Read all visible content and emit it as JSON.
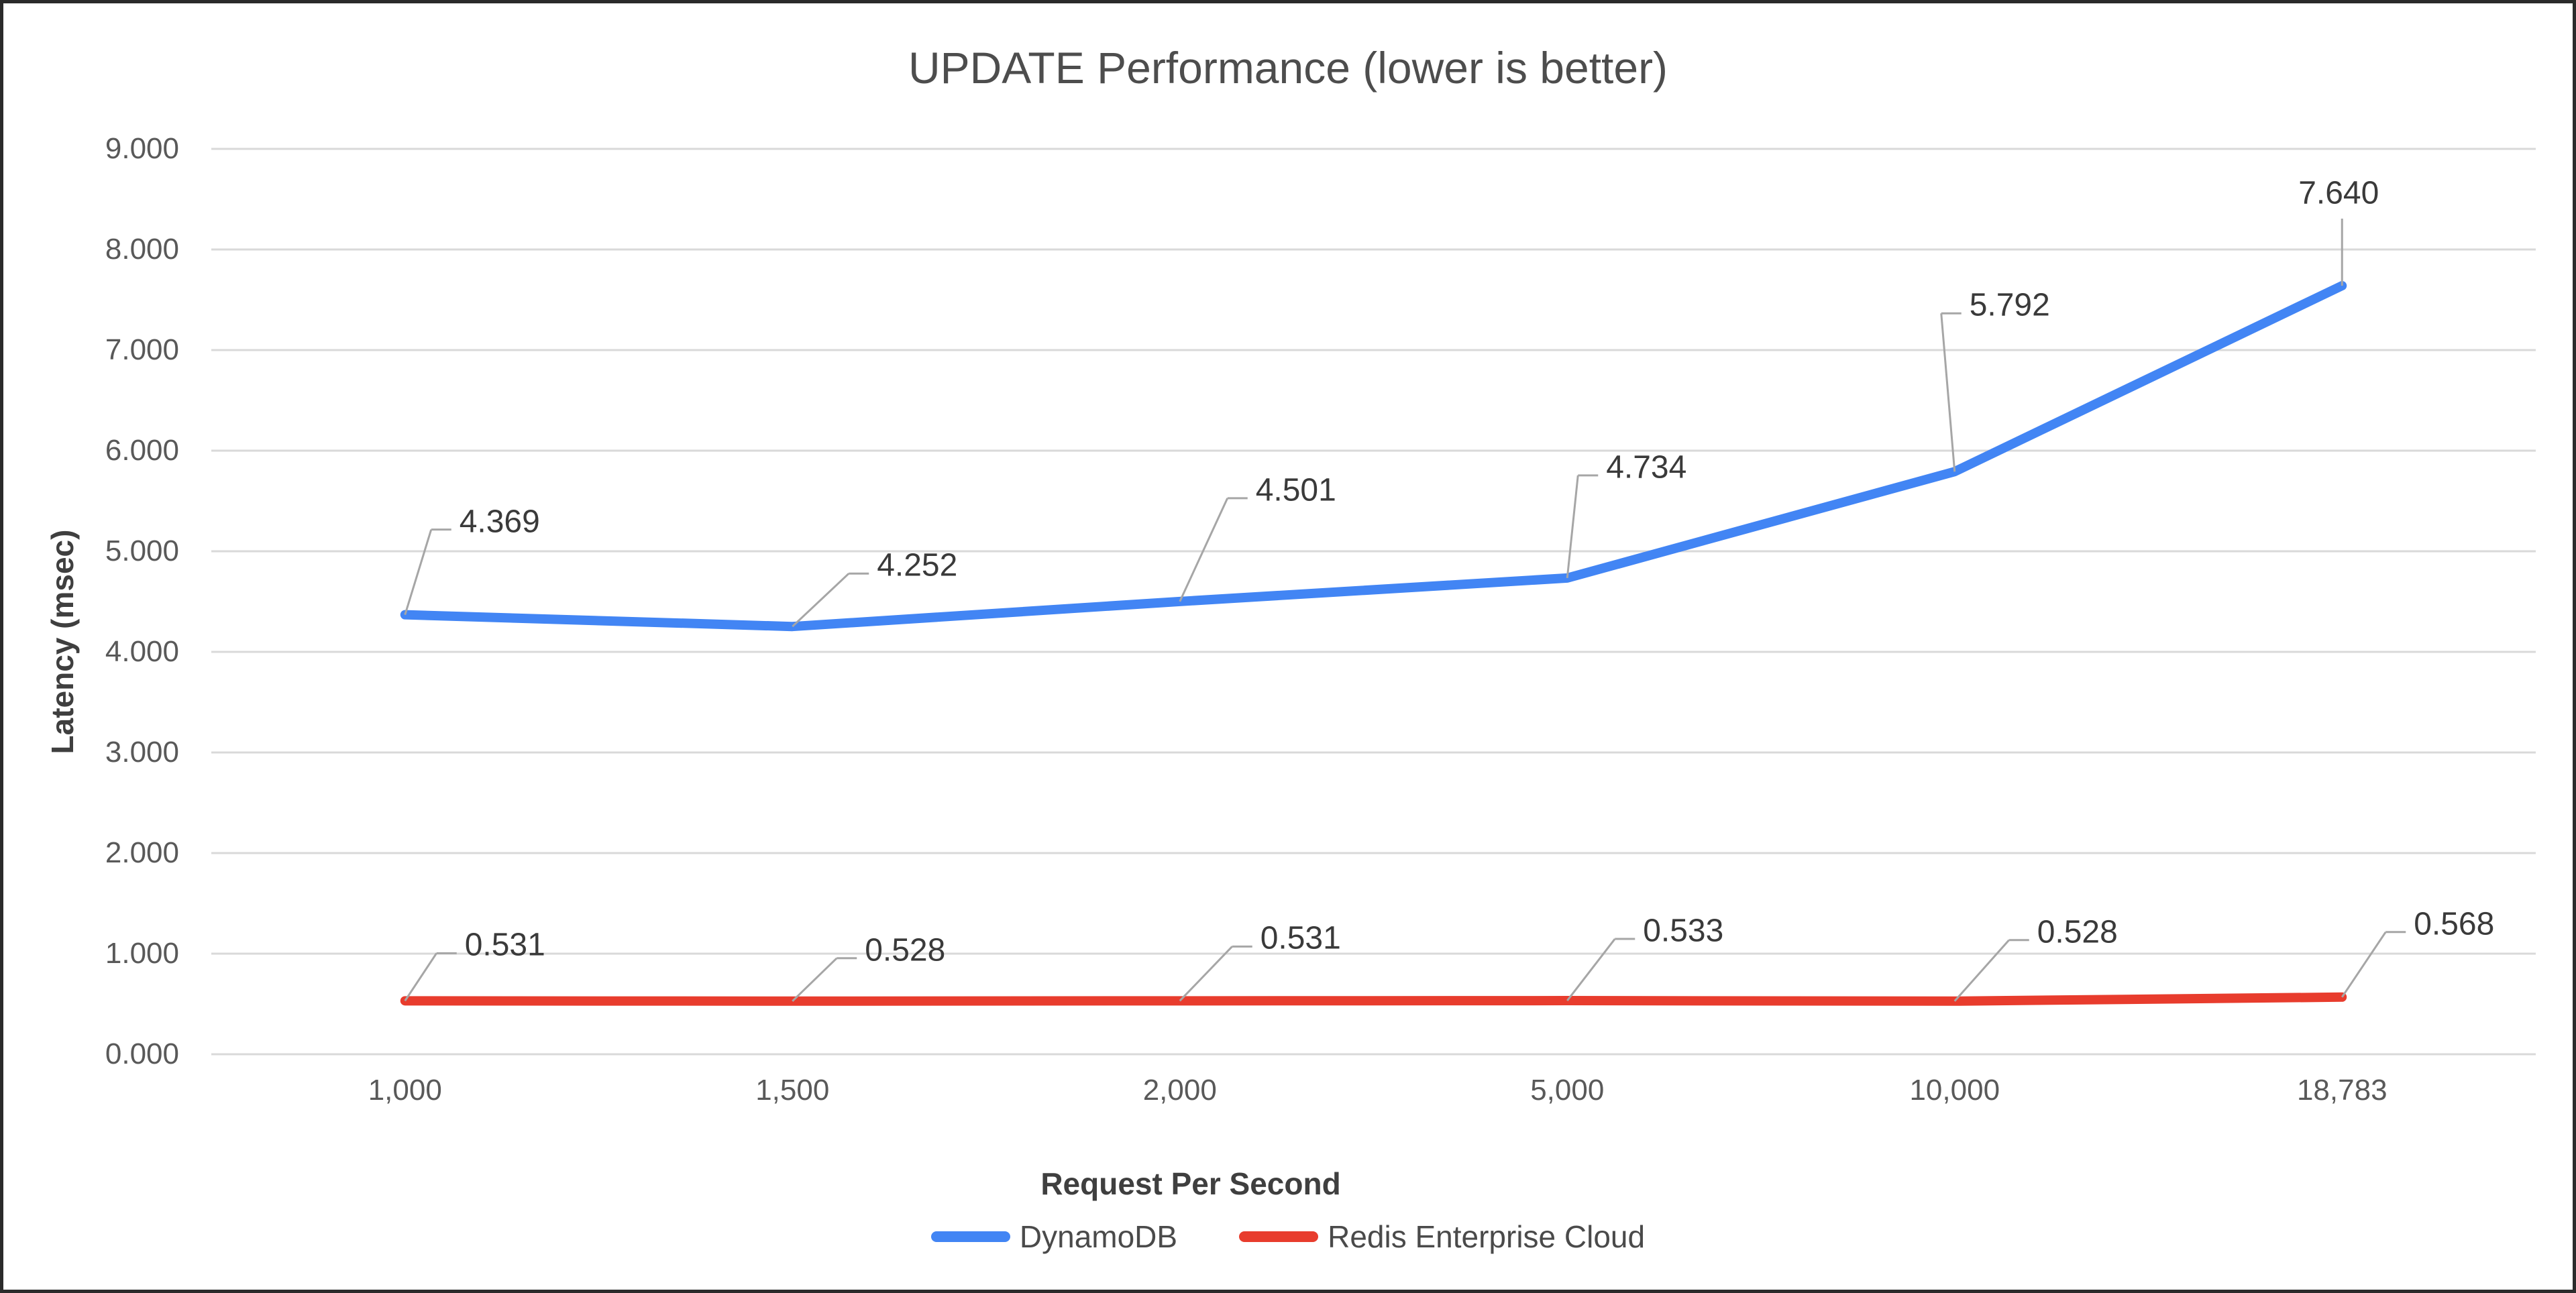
{
  "title": "UPDATE Performance (lower is better)",
  "chart_data": {
    "type": "line",
    "title": "UPDATE Performance (lower is better)",
    "xlabel": "Request Per Second",
    "ylabel": "Latency (msec)",
    "categories": [
      "1,000",
      "1,500",
      "2,000",
      "5,000",
      "10,000",
      "18,783"
    ],
    "series": [
      {
        "name": "DynamoDB",
        "color": "#4285F4",
        "values": [
          4.369,
          4.252,
          4.501,
          4.734,
          5.792,
          7.64
        ],
        "point_labels": [
          "4.369",
          "4.252",
          "4.501",
          "4.734",
          "5.792",
          "7.640"
        ]
      },
      {
        "name": "Redis Enterprise Cloud",
        "color": "#E83C2D",
        "values": [
          0.531,
          0.528,
          0.531,
          0.533,
          0.528,
          0.568
        ],
        "point_labels": [
          "0.531",
          "0.528",
          "0.531",
          "0.533",
          "0.528",
          "0.568"
        ]
      }
    ],
    "ylim": [
      0,
      9
    ],
    "ytick_step": 1,
    "ytick_labels": [
      "0.000",
      "1.000",
      "2.000",
      "3.000",
      "4.000",
      "5.000",
      "6.000",
      "7.000",
      "8.000",
      "9.000"
    ],
    "grid": true,
    "gridline_color": "#d9d9d9",
    "leader_line_color": "#a6a6a6",
    "legend_position": "bottom"
  }
}
